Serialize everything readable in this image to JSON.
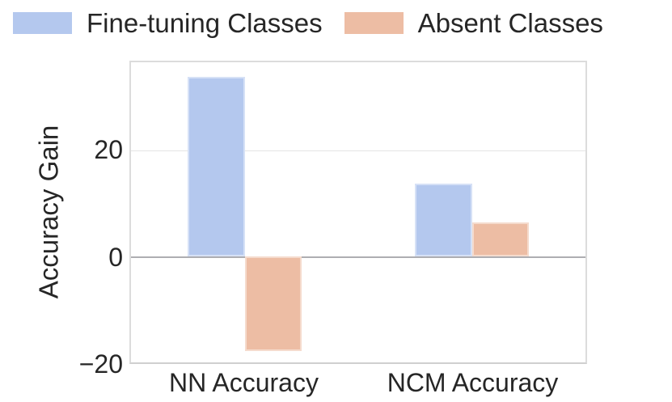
{
  "chart_data": {
    "type": "bar",
    "categories": [
      "NN Accuracy",
      "NCM Accuracy"
    ],
    "series": [
      {
        "name": "Fine-tuning Classes",
        "color": "#b4c8ee",
        "values": [
          34.0,
          13.8
        ]
      },
      {
        "name": "Absent Classes",
        "color": "#edbda4",
        "values": [
          -17.8,
          6.5
        ]
      }
    ],
    "title": "",
    "xlabel": "",
    "ylabel": "Accuracy Gain",
    "ylim": [
      -20,
      36.7
    ],
    "yticks": [
      {
        "value": -20,
        "label": "−20"
      },
      {
        "value": 0,
        "label": "0"
      },
      {
        "value": 20,
        "label": "20"
      }
    ],
    "grid": true,
    "legend_position": "top",
    "colors": {
      "gridline": "#e4e4e4",
      "zero_line": "#aeaeb2",
      "plot_border": "#dcdcdc",
      "text": "#262626",
      "background": "#ffffff"
    }
  }
}
